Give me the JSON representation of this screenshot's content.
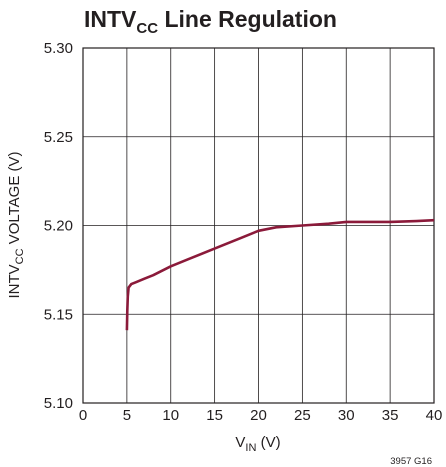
{
  "chart_data": {
    "type": "line",
    "title": {
      "main": "INTV",
      "sub": "CC",
      "rest": " Line Regulation"
    },
    "xlabel": {
      "main": "V",
      "sub": "IN",
      "rest": " (V)"
    },
    "ylabel": {
      "main": "INTV",
      "sub": "CC",
      "rest": " VOLTAGE (V)"
    },
    "xlim": [
      0,
      40
    ],
    "ylim": [
      5.1,
      5.3
    ],
    "x_ticks": [
      "0",
      "5",
      "10",
      "15",
      "20",
      "25",
      "30",
      "35",
      "40"
    ],
    "y_ticks": [
      "5.10",
      "5.15",
      "5.20",
      "5.25",
      "5.30"
    ],
    "grid": true,
    "note": "3957 G16",
    "series": [
      {
        "color": "#8b1a3a",
        "x": [
          5.0,
          5.05,
          5.1,
          5.2,
          5.5,
          6,
          7,
          8,
          10,
          12,
          15,
          18,
          20,
          22,
          25,
          28,
          30,
          32,
          35,
          38,
          40
        ],
        "y": [
          5.141,
          5.152,
          5.16,
          5.165,
          5.167,
          5.168,
          5.17,
          5.172,
          5.177,
          5.181,
          5.187,
          5.193,
          5.197,
          5.199,
          5.2,
          5.201,
          5.202,
          5.202,
          5.202,
          5.2025,
          5.203
        ]
      }
    ]
  }
}
